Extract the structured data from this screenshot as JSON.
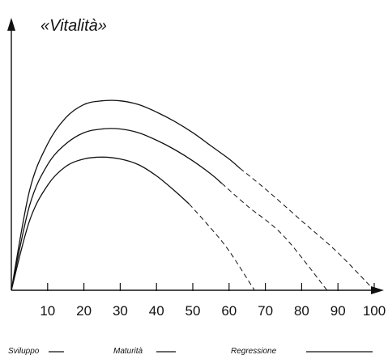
{
  "chart_data": {
    "type": "line",
    "title": "«Vitalità»",
    "xlabel": "",
    "ylabel": "",
    "xlim": [
      0,
      100
    ],
    "ylim": [
      0,
      100
    ],
    "x_ticks": [
      10,
      20,
      30,
      40,
      50,
      60,
      70,
      80,
      90,
      100
    ],
    "grid": false,
    "line_color": "#111111",
    "series": [
      {
        "solid_points": [
          [
            0,
            0
          ],
          [
            5,
            53
          ],
          [
            10,
            78
          ],
          [
            15,
            92
          ],
          [
            20,
            99
          ],
          [
            25,
            101
          ],
          [
            30,
            101
          ],
          [
            35,
            99
          ],
          [
            40,
            95
          ],
          [
            45,
            90
          ],
          [
            50,
            84
          ],
          [
            55,
            77
          ],
          [
            60,
            70
          ],
          [
            63,
            65
          ]
        ],
        "dashed_points": [
          [
            63,
            65
          ],
          [
            70,
            54
          ],
          [
            80,
            37
          ],
          [
            90,
            20
          ],
          [
            100,
            0
          ]
        ]
      },
      {
        "solid_points": [
          [
            0,
            0
          ],
          [
            5,
            45
          ],
          [
            10,
            67
          ],
          [
            15,
            78
          ],
          [
            20,
            84
          ],
          [
            25,
            86
          ],
          [
            30,
            86
          ],
          [
            35,
            84
          ],
          [
            40,
            80
          ],
          [
            45,
            75
          ],
          [
            50,
            69
          ],
          [
            55,
            62
          ],
          [
            58,
            57
          ]
        ],
        "dashed_points": [
          [
            58,
            57
          ],
          [
            65,
            45
          ],
          [
            75,
            29
          ],
          [
            87,
            0
          ]
        ]
      },
      {
        "solid_points": [
          [
            0,
            0
          ],
          [
            5,
            37
          ],
          [
            10,
            56
          ],
          [
            15,
            66
          ],
          [
            20,
            70
          ],
          [
            25,
            71
          ],
          [
            30,
            70
          ],
          [
            35,
            67
          ],
          [
            40,
            61
          ],
          [
            45,
            53
          ],
          [
            49,
            46
          ]
        ],
        "dashed_points": [
          [
            49,
            46
          ],
          [
            55,
            33
          ],
          [
            60,
            21
          ],
          [
            67,
            0
          ]
        ]
      }
    ],
    "phase_legend": [
      {
        "label": "Svilupp⁠o",
        "kind": "solid"
      },
      {
        "label": "Maturità",
        "kind": "solid"
      },
      {
        "label": "Regressione",
        "kind": "solid"
      }
    ]
  }
}
